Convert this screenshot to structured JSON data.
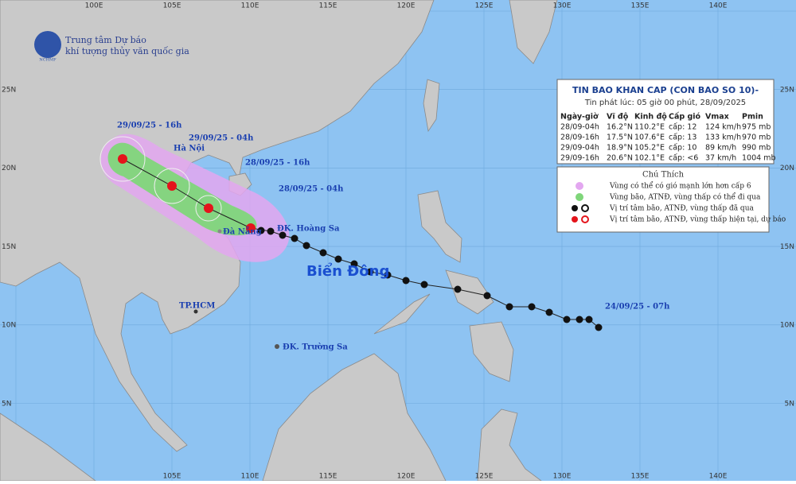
{
  "header": {
    "org_line1": "Trung tâm Dự báo",
    "org_line2": "khí tượng thủy văn quốc gia",
    "logo_text": "NCHMF"
  },
  "bulletin": {
    "title": "TIN BAO KHAN CAP (CON BAO SO 10)-",
    "issued": "Tin phát lúc: 05 giờ 00 phút, 28/09/2025",
    "columns": [
      "Ngày-giờ",
      "Vĩ độ",
      "Kinh độ",
      "Cấp gió",
      "Vmax",
      "Pmin"
    ],
    "rows": [
      [
        "28/09-04h",
        "16.2°N",
        "110.2°E",
        "cấp: 12",
        "124 km/h",
        "975 mb"
      ],
      [
        "28/09-16h",
        "17.5°N",
        "107.6°E",
        "cấp: 13",
        "133 km/h",
        "970 mb"
      ],
      [
        "29/09-04h",
        "18.9°N",
        "105.2°E",
        "cấp: 10",
        "89 km/h",
        "990 mb"
      ],
      [
        "29/09-16h",
        "20.6°N",
        "102.1°E",
        "cấp: <6",
        "37 km/h",
        "1004 mb"
      ]
    ]
  },
  "legend": {
    "title": "Chú Thích",
    "items": [
      "Vùng có thể có gió mạnh lớn hơn cấp 6",
      "Vùng bão, ATNĐ, vùng thấp có thể đi qua",
      "Vị trí tâm bão, ATNĐ, vùng thấp đã qua",
      "Vị trí tâm bão, ATNĐ, vùng thấp hiện tại, dự báo"
    ]
  },
  "labels": {
    "t1": "29/09/25 - 16h",
    "t2": "29/09/25 - 04h",
    "t3": "28/09/25 - 16h",
    "t4": "28/09/25 - 04h",
    "t5": "24/09/25 - 07h",
    "hanoi": "Hà Nội",
    "danang": "Đà Nẵng",
    "hoangsa": "ĐK. Hoàng Sa",
    "truongsa": "ĐK. Trường Sa",
    "hcm": "TP.HCM",
    "sea": "Biển Đông"
  },
  "grid": {
    "top": [
      "100E",
      "105E",
      "110E",
      "115E",
      "120E",
      "125E",
      "130E",
      "135E",
      "140E"
    ],
    "bottom": [
      "105E",
      "110E",
      "115E",
      "120E",
      "125E",
      "130E",
      "135E",
      "140E"
    ],
    "lat": [
      "25N",
      "20N",
      "15N",
      "10N",
      "5N"
    ]
  }
}
